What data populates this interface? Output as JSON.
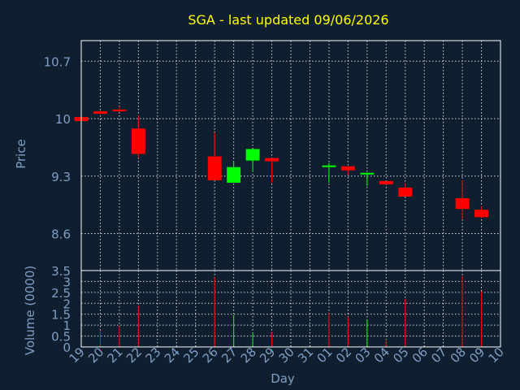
{
  "title": "SGA - last updated 09/06/2026",
  "colors": {
    "background": "#0f1f2f",
    "axis": "#ffffff",
    "grid": "#d8d8d8",
    "tick_text": "#7f9fc6",
    "title_text": "#ffff00",
    "up": "#00ff00",
    "down": "#ff0000"
  },
  "chart_data": [
    {
      "type": "candlestick",
      "ylabel": "Price",
      "ylim": [
        8.15,
        10.95
      ],
      "yticks": [
        8.6,
        9.3,
        10,
        10.7
      ],
      "ytick_labels": [
        "8.6",
        "9.3",
        "10",
        "10.7"
      ],
      "candles": [
        {
          "x": "19",
          "open": 10.02,
          "close": 9.97,
          "high": 10.03,
          "low": 9.96
        },
        {
          "x": "20",
          "open": 10.09,
          "close": 10.06,
          "high": 10.1,
          "low": 10.05
        },
        {
          "x": "21",
          "open": 10.11,
          "close": 10.1,
          "high": 10.15,
          "low": 10.08
        },
        {
          "x": "22",
          "open": 9.88,
          "close": 9.57,
          "high": 10.04,
          "low": 9.52
        },
        {
          "x": "26",
          "open": 9.54,
          "close": 9.25,
          "high": 9.83,
          "low": 9.25
        },
        {
          "x": "27",
          "open": 9.22,
          "close": 9.41,
          "high": 9.48,
          "low": 9.22
        },
        {
          "x": "28",
          "open": 9.49,
          "close": 9.63,
          "high": 9.63,
          "low": 9.35
        },
        {
          "x": "29",
          "open": 9.52,
          "close": 9.48,
          "high": 9.52,
          "low": 9.21
        },
        {
          "x": "01",
          "open": 9.43,
          "close": 9.43,
          "high": 9.46,
          "low": 9.22
        },
        {
          "x": "02",
          "open": 9.42,
          "close": 9.37,
          "high": 9.42,
          "low": 9.32
        },
        {
          "x": "03",
          "open": 9.33,
          "close": 9.34,
          "high": 9.34,
          "low": 9.18
        },
        {
          "x": "04",
          "open": 9.24,
          "close": 9.2,
          "high": 9.24,
          "low": 9.2
        },
        {
          "x": "05",
          "open": 9.16,
          "close": 9.05,
          "high": 9.21,
          "low": 9.05
        },
        {
          "x": "08",
          "open": 9.03,
          "close": 8.9,
          "high": 9.25,
          "low": 8.77
        },
        {
          "x": "09",
          "open": 8.89,
          "close": 8.8,
          "high": 8.93,
          "low": 8.79
        }
      ]
    },
    {
      "type": "bar",
      "ylabel": "Volume (0000)",
      "xlabel": "Day",
      "ylim": [
        0,
        3.5
      ],
      "yticks": [
        0,
        0.5,
        1,
        1.5,
        2,
        2.5,
        3,
        3.5
      ],
      "ytick_labels": [
        "0",
        "0.5",
        "1",
        "1.5",
        "2",
        "2.5",
        "3",
        "3.5"
      ],
      "categories": [
        "19",
        "20",
        "21",
        "22",
        "23",
        "24",
        "25",
        "26",
        "27",
        "28",
        "29",
        "30",
        "31",
        "01",
        "02",
        "03",
        "04",
        "05",
        "06",
        "07",
        "08",
        "09",
        "10"
      ],
      "bars": [
        {
          "x": "20",
          "value": 0.75,
          "color": "#ff0000"
        },
        {
          "x": "21",
          "value": 0.95,
          "color": "#ff0000"
        },
        {
          "x": "22",
          "value": 1.9,
          "color": "#ff0000"
        },
        {
          "x": "26",
          "value": 3.2,
          "color": "#ff0000"
        },
        {
          "x": "27",
          "value": 1.45,
          "color": "#00ff00"
        },
        {
          "x": "28",
          "value": 0.65,
          "color": "#00ff00"
        },
        {
          "x": "29",
          "value": 0.65,
          "color": "#ff0000"
        },
        {
          "x": "01",
          "value": 1.55,
          "color": "#ff0000"
        },
        {
          "x": "02",
          "value": 1.4,
          "color": "#ff0000"
        },
        {
          "x": "03",
          "value": 1.25,
          "color": "#00ff00"
        },
        {
          "x": "04",
          "value": 0.35,
          "color": "#ff0000"
        },
        {
          "x": "05",
          "value": 2.2,
          "color": "#ff0000"
        },
        {
          "x": "08",
          "value": 3.25,
          "color": "#ff0000"
        },
        {
          "x": "09",
          "value": 2.55,
          "color": "#ff0000"
        }
      ]
    }
  ]
}
